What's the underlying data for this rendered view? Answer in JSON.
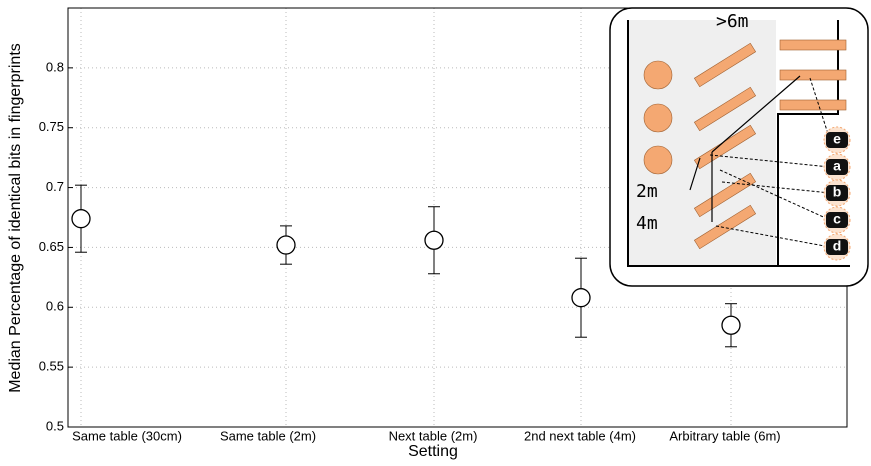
{
  "chart_data": {
    "type": "errorbar",
    "x_label": "Setting",
    "y_label": "Median Percentage of identical bits in fingerprints",
    "categories": [
      "Same table (30cm)",
      "Same table (2m)",
      "Next table (2m)",
      "2nd next table (4m)",
      "Arbitrary table (6m)"
    ],
    "values": [
      0.674,
      0.652,
      0.656,
      0.608,
      0.585
    ],
    "errors": [
      0.028,
      0.016,
      0.028,
      0.033,
      0.018
    ],
    "color": "#000000",
    "ylim": [
      0.5,
      0.85
    ],
    "yticks": [
      0.5,
      0.55,
      0.6,
      0.65,
      0.7,
      0.75,
      0.8
    ],
    "grid": true,
    "inset_labels": {
      "distances": [
        ">6m",
        "2m",
        "4m"
      ],
      "positions": [
        "e",
        "a",
        "b",
        "c",
        "d"
      ]
    }
  }
}
